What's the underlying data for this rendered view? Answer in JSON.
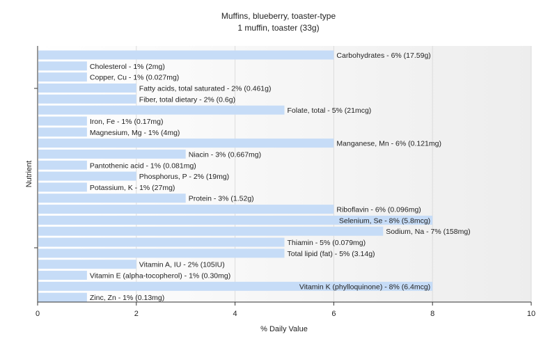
{
  "chart_data": {
    "type": "bar",
    "orientation": "horizontal",
    "title": "Muffins, blueberry, toaster-type",
    "subtitle": "1 muffin, toaster (33g)",
    "xlabel": "% Daily Value",
    "ylabel": "Nutrient",
    "xlim": [
      0,
      10
    ],
    "xticks": [
      0,
      2,
      4,
      6,
      8,
      10
    ],
    "grid": true,
    "legend": "none",
    "bar_color": "#c6dcf7",
    "categories": [
      "Carbohydrates",
      "Cholesterol",
      "Copper, Cu",
      "Fatty acids, total saturated",
      "Fiber, total dietary",
      "Folate, total",
      "Iron, Fe",
      "Magnesium, Mg",
      "Manganese, Mn",
      "Niacin",
      "Pantothenic acid",
      "Phosphorus, P",
      "Potassium, K",
      "Protein",
      "Riboflavin",
      "Selenium, Se",
      "Sodium, Na",
      "Thiamin",
      "Total lipid (fat)",
      "Vitamin A, IU",
      "Vitamin E (alpha-tocopherol)",
      "Vitamin K (phylloquinone)",
      "Zinc, Zn"
    ],
    "values": [
      6,
      1,
      1,
      2,
      2,
      5,
      1,
      1,
      6,
      3,
      1,
      2,
      1,
      3,
      6,
      8,
      7,
      5,
      5,
      2,
      1,
      8,
      1
    ],
    "data_labels": [
      "Carbohydrates - 6% (17.59g)",
      "Cholesterol - 1% (2mg)",
      "Copper, Cu - 1% (0.027mg)",
      "Fatty acids, total saturated - 2% (0.461g)",
      "Fiber, total dietary - 2% (0.6g)",
      "Folate, total - 5% (21mcg)",
      "Iron, Fe - 1% (0.17mg)",
      "Magnesium, Mg - 1% (4mg)",
      "Manganese, Mn - 6% (0.121mg)",
      "Niacin - 3% (0.667mg)",
      "Pantothenic acid - 1% (0.081mg)",
      "Phosphorus, P - 2% (19mg)",
      "Potassium, K - 1% (27mg)",
      "Protein - 3% (1.52g)",
      "Riboflavin - 6% (0.096mg)",
      "Selenium, Se - 8% (5.8mcg)",
      "Sodium, Na - 7% (158mg)",
      "Thiamin - 5% (0.079mg)",
      "Total lipid (fat) - 5% (3.14g)",
      "Vitamin A, IU - 2% (105IU)",
      "Vitamin E (alpha-tocopherol) - 1% (0.30mg)",
      "Vitamin K (phylloquinone) - 8% (6.4mcg)",
      "Zinc, Zn - 1% (0.13mg)"
    ]
  }
}
